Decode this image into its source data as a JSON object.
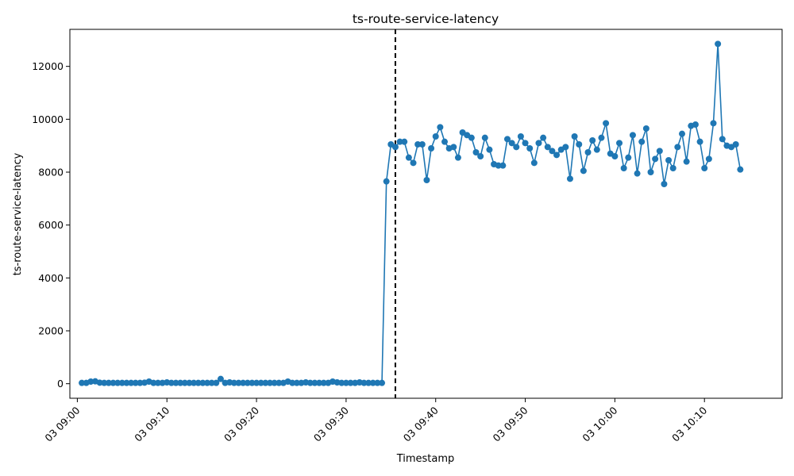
{
  "chart_data": {
    "type": "line",
    "title": "ts-route-service-latency",
    "xlabel": "Timestamp",
    "ylabel": "ts-route-service-latency",
    "x_start": "03 09:00:30",
    "x_interval_seconds": 30,
    "xlim": [
      "03 08:59:10",
      "03 10:18:40"
    ],
    "ylim": [
      -550,
      13400
    ],
    "x_ticks": [
      "03 09:00",
      "03 09:10",
      "03 09:20",
      "03 09:30",
      "03 09:40",
      "03 09:50",
      "03 10:00",
      "03 10:10"
    ],
    "y_ticks": [
      0,
      2000,
      4000,
      6000,
      8000,
      10000,
      12000
    ],
    "grid": false,
    "marker": "circle",
    "series_color": "#1f77b4",
    "vline": {
      "x": "03 09:35:30",
      "style": "dashed",
      "color": "#000000"
    },
    "series": [
      {
        "values": [
          30,
          30,
          80,
          90,
          40,
          30,
          30,
          30,
          30,
          30,
          30,
          30,
          30,
          30,
          40,
          80,
          30,
          30,
          30,
          50,
          30,
          30,
          30,
          30,
          30,
          30,
          30,
          30,
          30,
          30,
          30,
          180,
          30,
          50,
          30,
          30,
          30,
          30,
          30,
          30,
          30,
          30,
          30,
          30,
          30,
          30,
          80,
          30,
          30,
          30,
          50,
          30,
          30,
          30,
          30,
          30,
          80,
          50,
          30,
          30,
          30,
          30,
          50,
          30,
          30,
          30,
          30,
          30,
          7650,
          9050,
          8950,
          9150,
          9150,
          8550,
          8350,
          9050,
          9050,
          7700,
          8900,
          9350,
          9700,
          9150,
          8900,
          8950,
          8550,
          9500,
          9400,
          9300,
          8750,
          8600,
          9300,
          8850,
          8300,
          8250,
          8250,
          9250,
          9100,
          8950,
          9350,
          9100,
          8900,
          8350,
          9100,
          9300,
          8950,
          8800,
          8650,
          8850,
          8950,
          7750,
          9350,
          9050,
          8050,
          8750,
          9200,
          8850,
          9300,
          9850,
          8700,
          8600,
          9100,
          8150,
          8550,
          9400,
          7950,
          9150,
          9650,
          8000,
          8500,
          8800,
          7550,
          8450,
          8150,
          8950,
          9450,
          8400,
          9750,
          9800,
          9150,
          8150,
          8500,
          9850,
          12850,
          9250,
          9000,
          8950,
          9050,
          8100
        ]
      }
    ]
  }
}
